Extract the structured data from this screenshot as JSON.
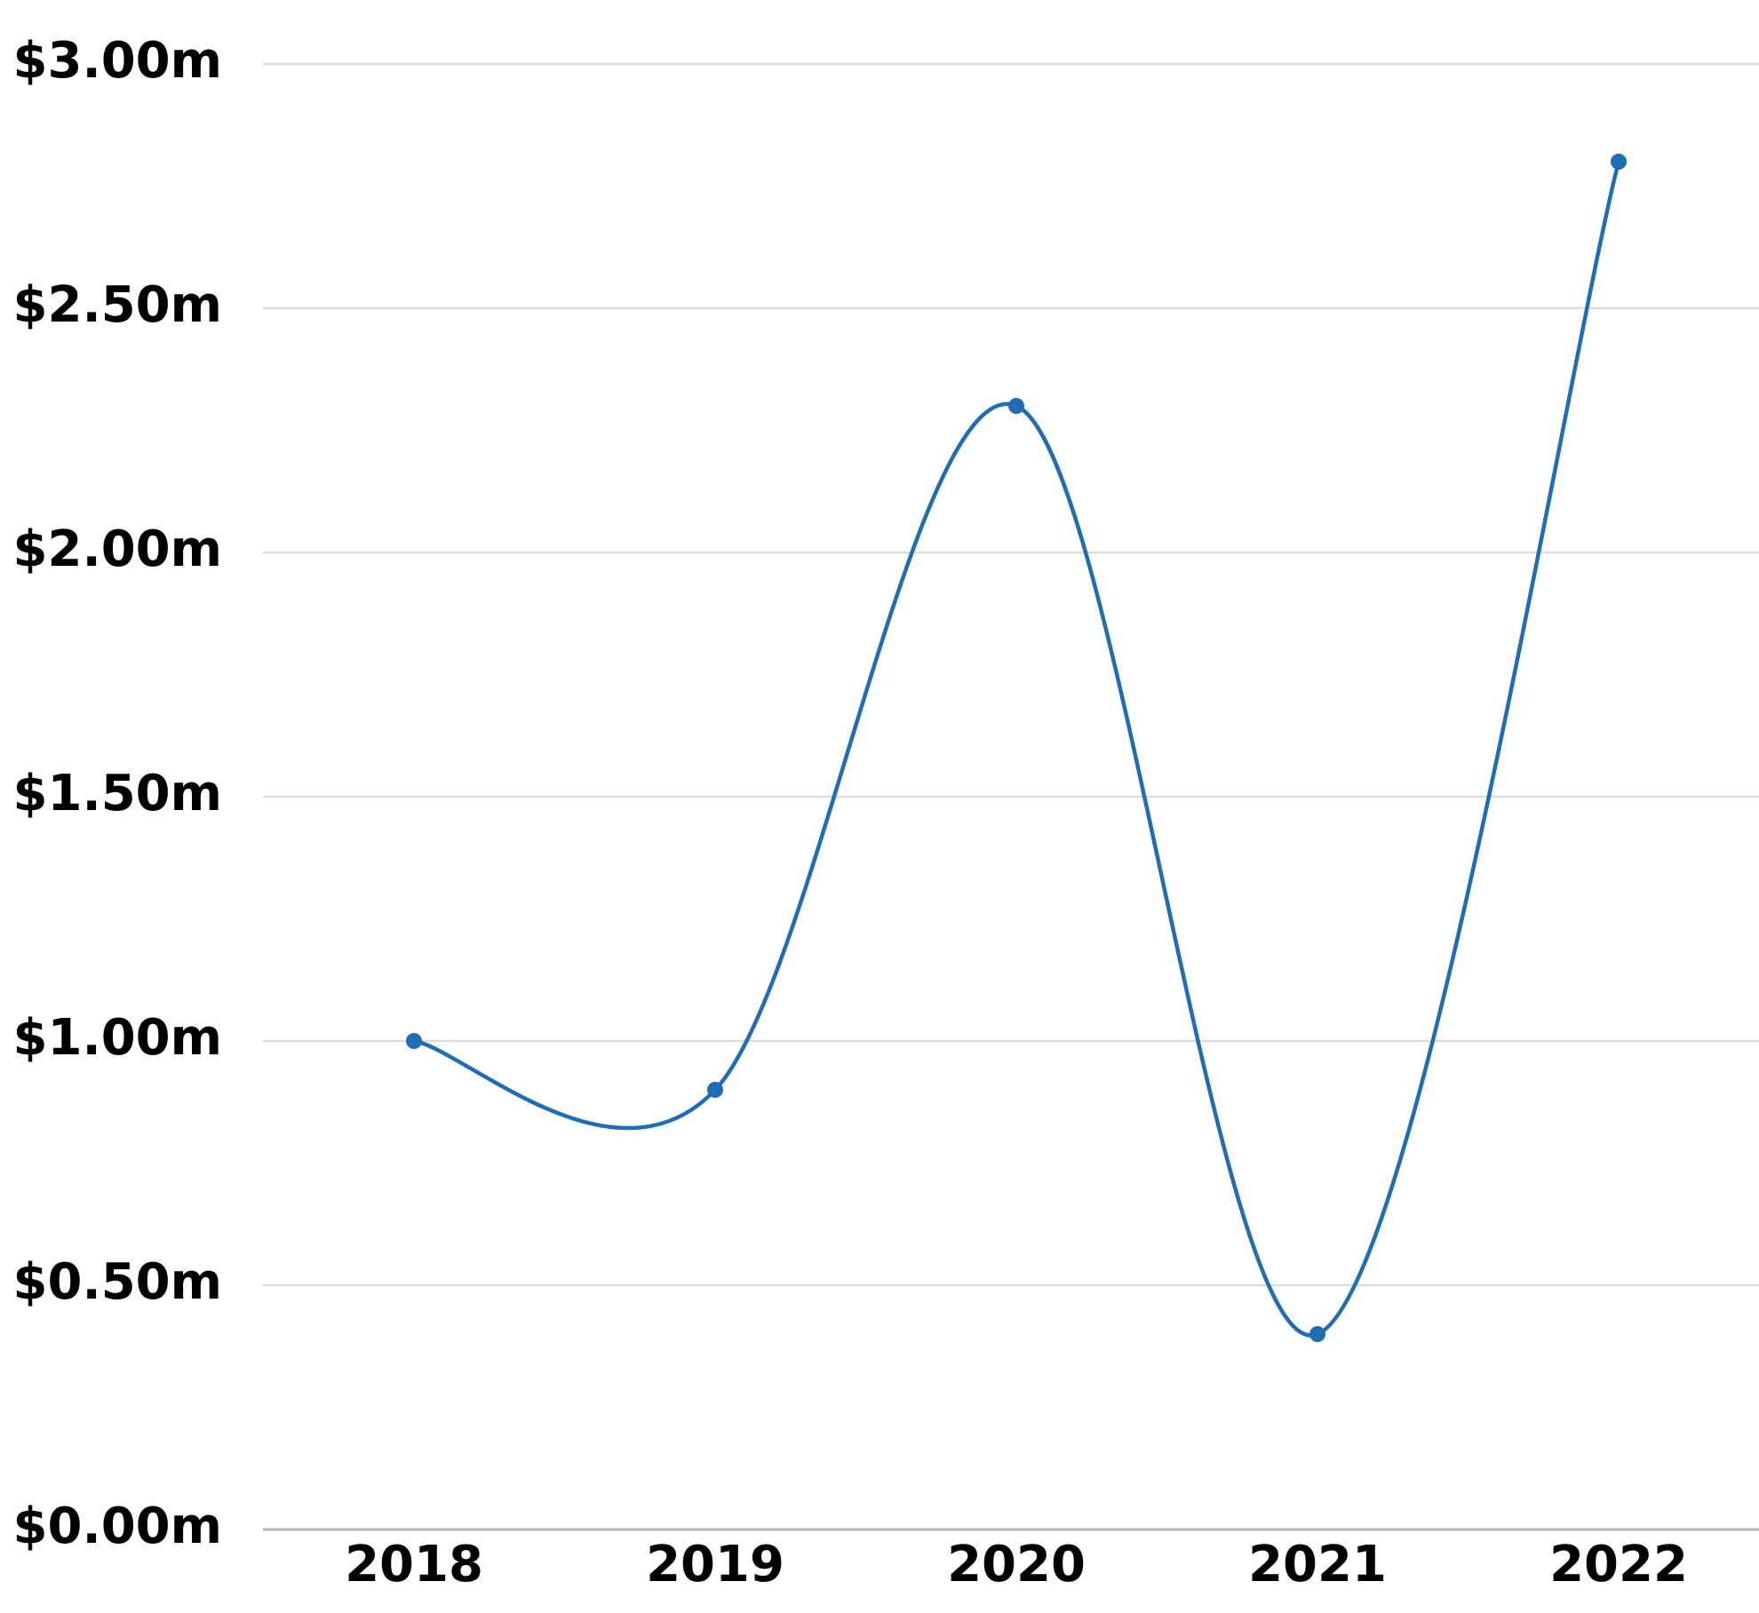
{
  "chart_data": {
    "type": "line",
    "title": "",
    "xlabel": "",
    "ylabel": "",
    "categories": [
      "2018",
      "2019",
      "2020",
      "2021",
      "2022"
    ],
    "series": [
      {
        "values": [
          1.0,
          0.9,
          2.3,
          0.4,
          2.8
        ],
        "color": "#1f6db5"
      }
    ],
    "ylim": [
      0,
      3
    ],
    "y_ticks": [
      0,
      0.5,
      1.0,
      1.5,
      2.0,
      2.5,
      3.0
    ],
    "y_tick_labels": [
      "$0.00m",
      "$0.50m",
      "$1.00m",
      "$1.50m",
      "$2.00m",
      "$2.50m",
      "$3.00m"
    ],
    "grid": true,
    "smooth": true,
    "markers": true,
    "legend": "none"
  }
}
